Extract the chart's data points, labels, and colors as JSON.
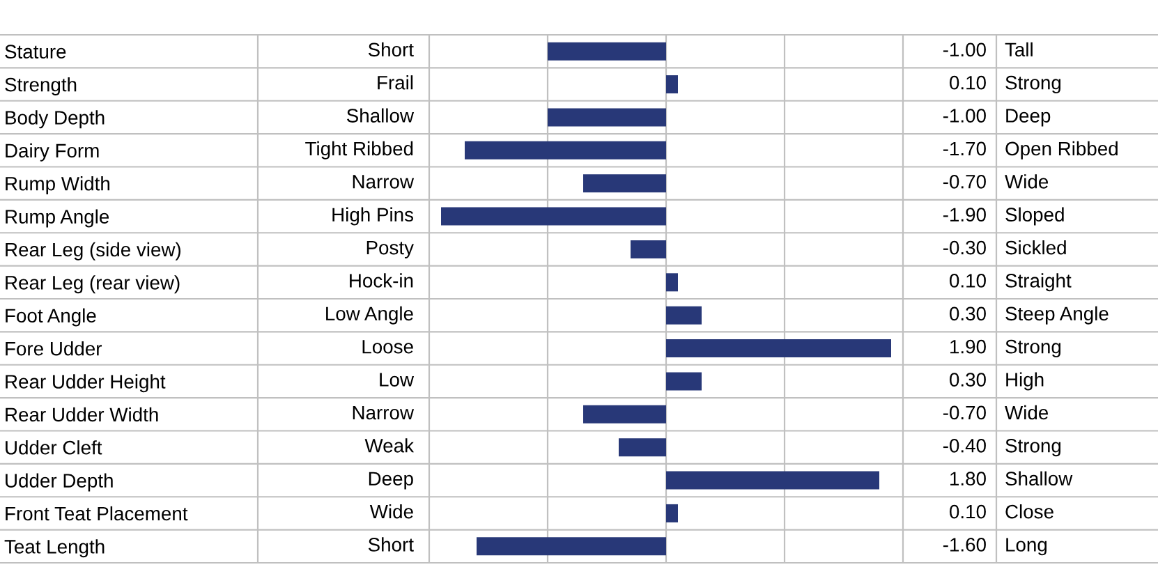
{
  "chart_data": {
    "type": "bar",
    "orientation": "horizontal",
    "categories": [
      "Stature",
      "Strength",
      "Body Depth",
      "Dairy Form",
      "Rump Width",
      "Rump Angle",
      "Rear Leg (side view)",
      "Rear Leg (rear view)",
      "Foot Angle",
      "Fore Udder",
      "Rear Udder Height",
      "Rear Udder Width",
      "Udder Cleft",
      "Udder Depth",
      "Front Teat Placement",
      "Teat Length"
    ],
    "values": [
      -1.0,
      0.1,
      -1.0,
      -1.7,
      -0.7,
      -1.9,
      -0.3,
      0.1,
      0.3,
      1.9,
      0.3,
      -0.7,
      -0.4,
      1.8,
      0.1,
      -1.6
    ],
    "value_labels": [
      "-1.00",
      "0.10",
      "-1.00",
      "-1.70",
      "-0.70",
      "-1.90",
      "-0.30",
      "0.10",
      "0.30",
      "1.90",
      "0.30",
      "-0.70",
      "-0.40",
      "1.80",
      "0.10",
      "-1.60"
    ],
    "color": "#283878",
    "xlim": [
      -2,
      2
    ],
    "xticks": [
      {
        "value": -1,
        "label": null
      },
      {
        "value": 0,
        "label": null
      },
      {
        "value": 1,
        "label": null
      }
    ],
    "grid": "x",
    "tick_labels": "y",
    "annotations": [
      "Short",
      "Frail",
      "Shallow",
      "Tight Ribbed",
      "Narrow",
      "High Pins",
      "Posty",
      "Hock-in",
      "Low Angle",
      "Loose",
      "Low",
      "Narrow",
      "Weak",
      "Deep",
      "Wide",
      "Short",
      "Tall",
      "Strong",
      "Deep",
      "Open Ribbed",
      "Wide",
      "Sloped",
      "Sickled",
      "Straight",
      "Steep Angle",
      "Strong",
      "High",
      "Wide",
      "Strong",
      "Shallow",
      "Close",
      "Long"
    ]
  }
}
